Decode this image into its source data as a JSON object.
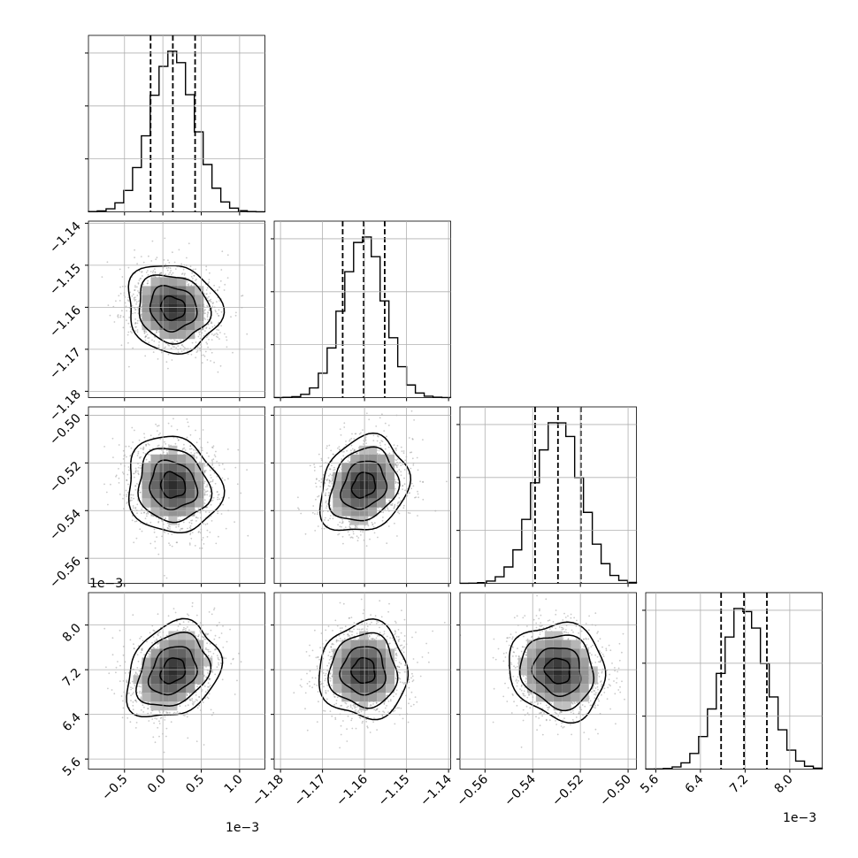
{
  "chart_data": {
    "type": "corner",
    "variables": [
      {
        "id": "p0",
        "range": [
          -0.97,
          1.33
        ],
        "ticks": [
          -0.5,
          0.0,
          0.5,
          1.0
        ],
        "tick_labels": [
          "−0.5",
          "0.0",
          "0.5",
          "1.0"
        ],
        "offset_label": "1e−3",
        "mean": 0.13,
        "sd": 0.29,
        "quantiles": [
          -0.16,
          0.13,
          0.42
        ]
      },
      {
        "id": "p1",
        "range": [
          -1.1815,
          -1.1395
        ],
        "ticks": [
          -1.18,
          -1.17,
          -1.16,
          -1.15,
          -1.14
        ],
        "tick_labels": [
          "−1.18",
          "−1.17",
          "−1.16",
          "−1.15",
          "−1.14"
        ],
        "offset_label": "",
        "mean": -1.1602,
        "sd": 0.005,
        "quantiles": [
          -1.1652,
          -1.1602,
          -1.1552
        ]
      },
      {
        "id": "p2",
        "range": [
          -0.5705,
          -0.4965
        ],
        "ticks": [
          -0.56,
          -0.54,
          -0.52,
          -0.5
        ],
        "tick_labels": [
          "−0.56",
          "−0.54",
          "−0.52",
          "−0.50"
        ],
        "offset_label": "",
        "mean": -0.5294,
        "sd": 0.0096,
        "quantiles": [
          -0.539,
          -0.5294,
          -0.5198
        ]
      },
      {
        "id": "p3",
        "range": [
          5.42,
          8.58
        ],
        "ticks": [
          5.6,
          6.4,
          7.2,
          8.0
        ],
        "tick_labels": [
          "5.6",
          "6.4",
          "7.2",
          "8.0"
        ],
        "offset_label": "1e−3",
        "mean": 7.18,
        "sd": 0.41,
        "quantiles": [
          6.77,
          7.18,
          7.59
        ]
      }
    ],
    "histogram_bins": 20,
    "correlations": {
      "p0_p1": -0.1,
      "p0_p2": -0.1,
      "p1_p2": 0.2,
      "p0_p3": 0.25,
      "p1_p3": 0.0,
      "p2_p3": -0.1
    },
    "grid": true
  },
  "colors": {
    "line": "#000000",
    "grid": "#b0b0b0",
    "points": "#8a8a8a"
  }
}
